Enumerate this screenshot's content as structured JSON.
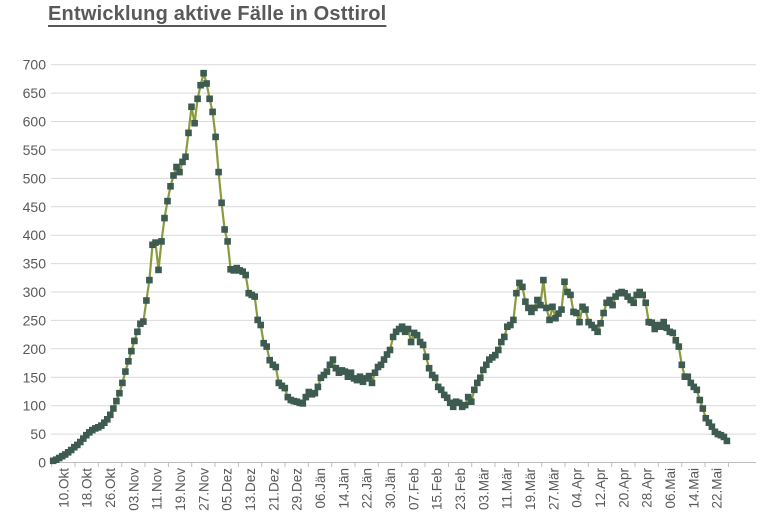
{
  "title": "Entwicklung aktive Fälle in Osttirol",
  "colors": {
    "background": "#ffffff",
    "title": "#595959",
    "tick_label": "#595959",
    "gridline": "#d9d9d9",
    "axis_line": "#bfbfbf",
    "line": "#8a9b3d",
    "marker": "#3d5b50"
  },
  "chart_data": {
    "type": "line",
    "title": "Entwicklung aktive Fälle in Osttirol",
    "xlabel": "",
    "ylabel": "",
    "ylim": [
      0,
      700
    ],
    "ytick_step": 50,
    "grid": "horizontal",
    "legend": "none",
    "marker_shape": "square",
    "line_color": "#8a9b3d",
    "marker_color": "#3d5b50",
    "x_tick_labels": [
      "10.Okt",
      "18.Okt",
      "26.Okt",
      "03.Nov",
      "11.Nov",
      "19.Nov",
      "27.Nov",
      "05.Dez",
      "13.Dez",
      "21.Dez",
      "29.Dez",
      "06.Jän",
      "14.Jän",
      "22.Jän",
      "30.Jän",
      "07.Feb",
      "15.Feb",
      "23.Feb",
      "03.Mär",
      "11.Mär",
      "19.Mär",
      "27.Mär",
      "04.Apr",
      "12.Apr",
      "20.Apr",
      "28.Apr",
      "06.Mai",
      "14.Mai",
      "22.Mai"
    ],
    "x_label_every": 8,
    "x_frequency": "daily",
    "values": [
      3,
      5,
      8,
      11,
      14,
      18,
      22,
      27,
      31,
      36,
      42,
      48,
      53,
      57,
      60,
      62,
      65,
      70,
      76,
      84,
      95,
      108,
      122,
      140,
      160,
      178,
      196,
      214,
      230,
      244,
      248,
      285,
      321,
      383,
      387,
      339,
      389,
      430,
      460,
      486,
      505,
      520,
      511,
      529,
      538,
      580,
      626,
      597,
      640,
      664,
      685,
      667,
      640,
      617,
      573,
      511,
      457,
      410,
      389,
      340,
      338,
      342,
      338,
      336,
      330,
      298,
      295,
      292,
      251,
      242,
      210,
      204,
      180,
      172,
      168,
      140,
      135,
      131,
      115,
      110,
      108,
      107,
      105,
      104,
      115,
      124,
      120,
      122,
      133,
      149,
      154,
      160,
      172,
      181,
      166,
      158,
      162,
      160,
      151,
      158,
      148,
      145,
      151,
      142,
      148,
      152,
      140,
      158,
      168,
      172,
      181,
      190,
      198,
      221,
      230,
      235,
      239,
      230,
      235,
      212,
      228,
      224,
      212,
      207,
      186,
      166,
      154,
      149,
      133,
      128,
      119,
      114,
      105,
      98,
      107,
      105,
      98,
      101,
      115,
      107,
      128,
      140,
      149,
      163,
      172,
      181,
      185,
      189,
      198,
      212,
      221,
      239,
      242,
      251,
      298,
      316,
      309,
      283,
      272,
      265,
      272,
      286,
      277,
      321,
      272,
      251,
      274,
      254,
      262,
      269,
      318,
      300,
      295,
      265,
      263,
      247,
      274,
      269,
      247,
      242,
      237,
      230,
      245,
      263,
      281,
      286,
      277,
      292,
      298,
      300,
      298,
      292,
      286,
      281,
      295,
      300,
      295,
      281,
      247,
      246,
      235,
      242,
      239,
      247,
      237,
      230,
      228,
      215,
      204,
      172,
      151,
      151,
      140,
      133,
      128,
      110,
      95,
      78,
      70,
      63,
      54,
      50,
      48,
      45,
      38
    ]
  }
}
